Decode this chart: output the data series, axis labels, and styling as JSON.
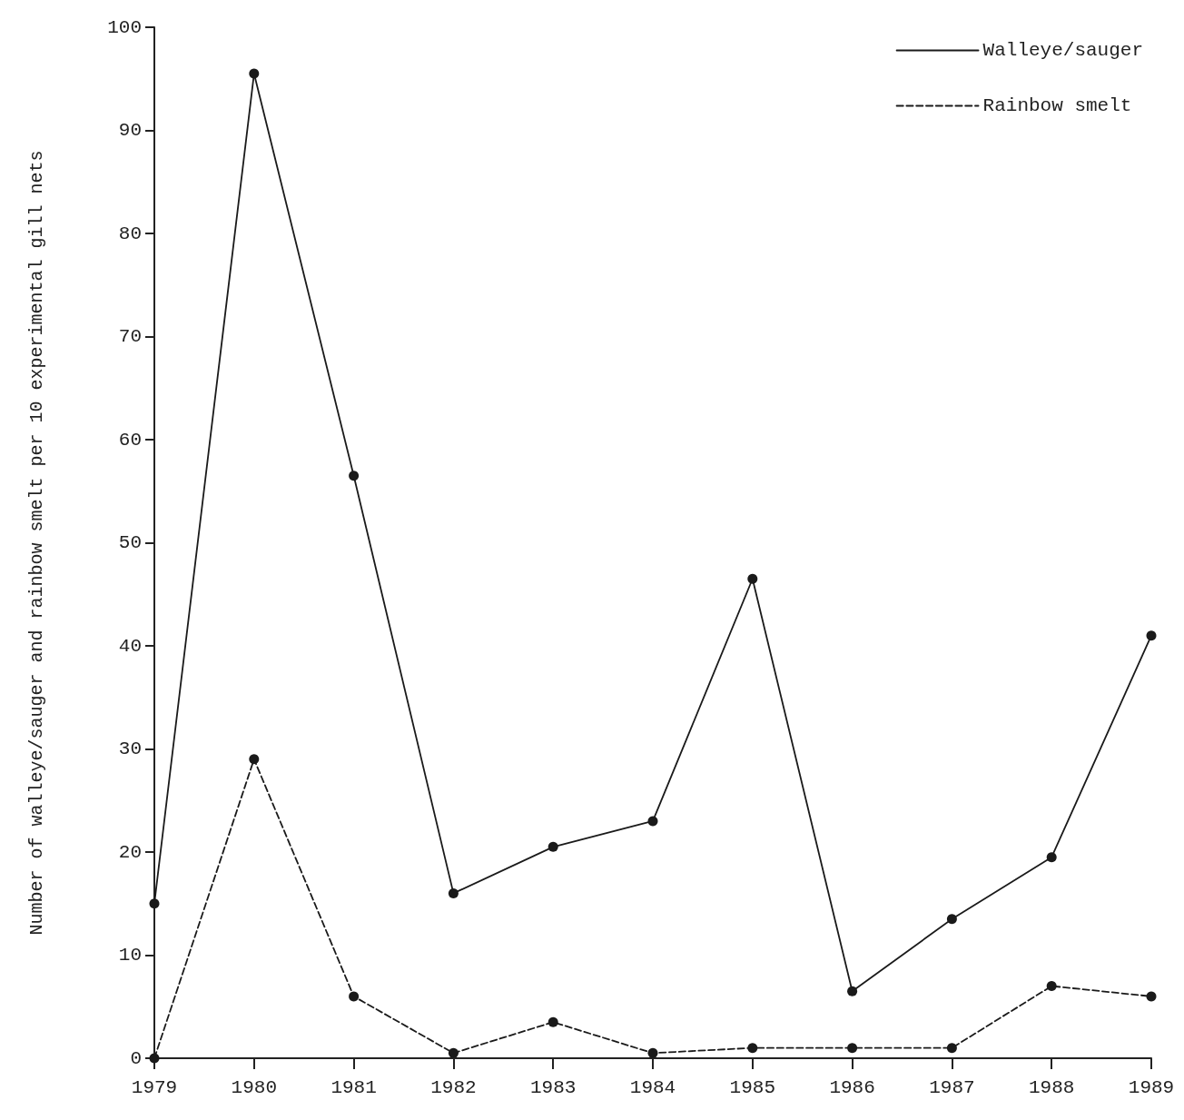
{
  "chart_data": {
    "type": "line",
    "ylabel": "Number of walleye/sauger and rainbow smelt per 10 experimental gill nets",
    "categories": [
      "1979",
      "1980",
      "1981",
      "1982",
      "1983",
      "1984",
      "1985",
      "1986",
      "1987",
      "1988",
      "1989"
    ],
    "series": [
      {
        "name": "Walleye/sauger",
        "color": "#1a1a1a",
        "line_style": "solid",
        "values": [
          15,
          95.5,
          56.5,
          16,
          20.5,
          23,
          46.5,
          6.5,
          13.5,
          19.5,
          41
        ]
      },
      {
        "name": "Rainbow smelt",
        "color": "#1a1a1a",
        "line_style": "dashed",
        "values": [
          0,
          29,
          6,
          0.5,
          3.5,
          0.5,
          1,
          1,
          1,
          7,
          6
        ]
      }
    ],
    "ylim": [
      0,
      100
    ],
    "yticks": [
      0,
      10,
      20,
      30,
      40,
      50,
      60,
      70,
      80,
      90,
      100
    ],
    "marker": "circle",
    "grid": false,
    "legend": "top right"
  }
}
